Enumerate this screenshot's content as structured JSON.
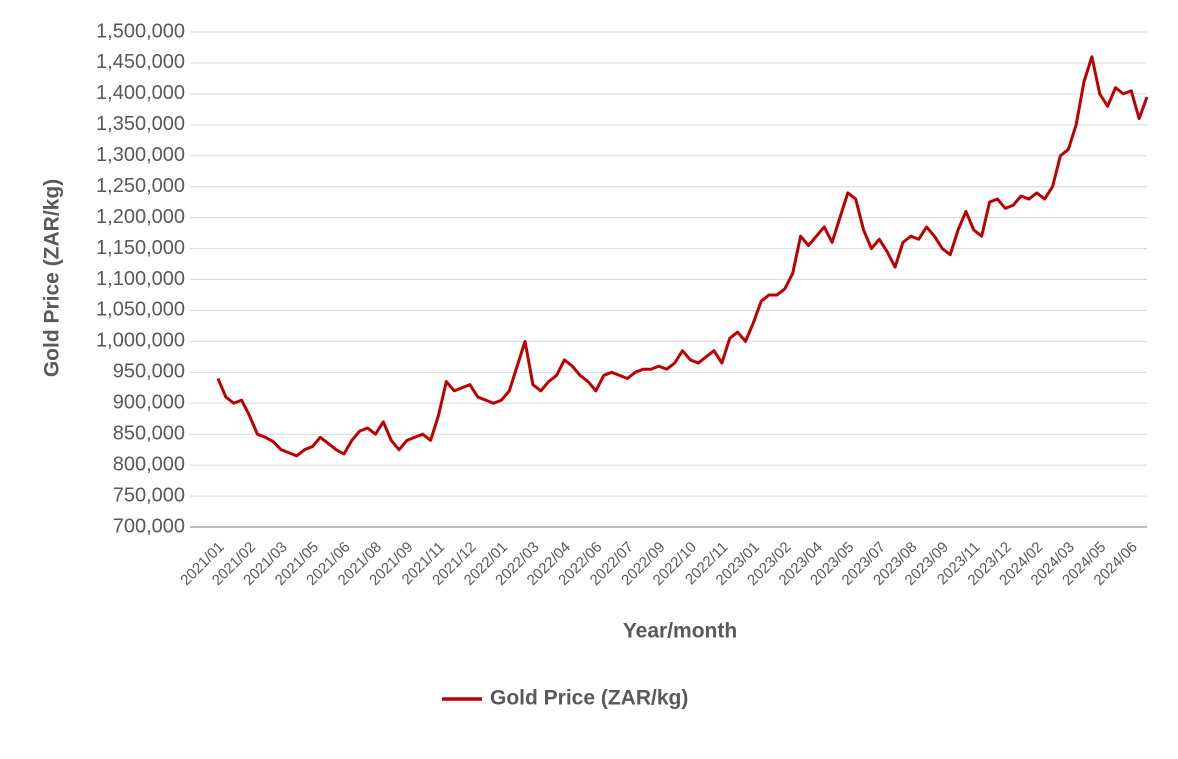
{
  "chart_data": {
    "type": "line",
    "x_label": "Year/month",
    "y_label": "Gold Price (ZAR/kg)",
    "categories": [
      "2021/01",
      null,
      null,
      null,
      "2021/02",
      null,
      null,
      null,
      "2021/03",
      null,
      null,
      null,
      "2021/05",
      null,
      null,
      null,
      "2021/06",
      null,
      null,
      null,
      "2021/08",
      null,
      null,
      null,
      "2021/09",
      null,
      null,
      null,
      "2021/11",
      null,
      null,
      null,
      "2021/12",
      null,
      null,
      null,
      "2022/01",
      null,
      null,
      null,
      "2022/03",
      null,
      null,
      null,
      "2022/04",
      null,
      null,
      null,
      "2022/06",
      null,
      null,
      null,
      "2022/07",
      null,
      null,
      null,
      "2022/09",
      null,
      null,
      null,
      "2022/10",
      null,
      null,
      null,
      "2022/11",
      null,
      null,
      null,
      "2023/01",
      null,
      null,
      null,
      "2023/02",
      null,
      null,
      null,
      "2023/04",
      null,
      null,
      null,
      "2023/05",
      null,
      null,
      null,
      "2023/07",
      null,
      null,
      null,
      "2023/08",
      null,
      null,
      null,
      "2023/09",
      null,
      null,
      null,
      "2023/11",
      null,
      null,
      null,
      "2023/12",
      null,
      null,
      null,
      "2024/02",
      null,
      null,
      null,
      "2024/03",
      null,
      null,
      null,
      "2024/05",
      null,
      null,
      null,
      "2024/06",
      null,
      null
    ],
    "series": [
      {
        "name": "Gold Price (ZAR/kg)",
        "color": "#c00000",
        "values": [
          940000,
          910000,
          900000,
          905000,
          880000,
          850000,
          845000,
          838000,
          825000,
          820000,
          815000,
          825000,
          830000,
          845000,
          835000,
          825000,
          818000,
          840000,
          855000,
          860000,
          850000,
          870000,
          840000,
          825000,
          840000,
          845000,
          850000,
          840000,
          880000,
          935000,
          920000,
          925000,
          930000,
          910000,
          905000,
          900000,
          905000,
          920000,
          960000,
          1000000,
          930000,
          920000,
          935000,
          945000,
          970000,
          960000,
          945000,
          935000,
          920000,
          945000,
          950000,
          945000,
          940000,
          950000,
          955000,
          955000,
          960000,
          955000,
          965000,
          985000,
          970000,
          965000,
          975000,
          985000,
          965000,
          1005000,
          1015000,
          1000000,
          1030000,
          1065000,
          1075000,
          1075000,
          1085000,
          1110000,
          1170000,
          1155000,
          1170000,
          1185000,
          1160000,
          1200000,
          1240000,
          1230000,
          1180000,
          1150000,
          1165000,
          1145000,
          1120000,
          1160000,
          1170000,
          1165000,
          1185000,
          1170000,
          1150000,
          1140000,
          1180000,
          1210000,
          1180000,
          1170000,
          1225000,
          1230000,
          1215000,
          1220000,
          1235000,
          1230000,
          1240000,
          1230000,
          1250000,
          1300000,
          1310000,
          1350000,
          1420000,
          1460000,
          1400000,
          1380000,
          1410000,
          1400000,
          1405000,
          1360000,
          1395000
        ]
      }
    ],
    "ylim": [
      700000,
      1500000
    ],
    "yticks": [
      {
        "value": 700000,
        "label": "700,000"
      },
      {
        "value": 750000,
        "label": "750,000"
      },
      {
        "value": 800000,
        "label": "800,000"
      },
      {
        "value": 850000,
        "label": "850,000"
      },
      {
        "value": 900000,
        "label": "900,000"
      },
      {
        "value": 950000,
        "label": "950,000"
      },
      {
        "value": 1000000,
        "label": "1,000,000"
      },
      {
        "value": 1050000,
        "label": "1,050,000"
      },
      {
        "value": 1100000,
        "label": "1,100,000"
      },
      {
        "value": 1150000,
        "label": "1,150,000"
      },
      {
        "value": 1200000,
        "label": "1,200,000"
      },
      {
        "value": 1250000,
        "label": "1,250,000"
      },
      {
        "value": 1300000,
        "label": "1,300,000"
      },
      {
        "value": 1350000,
        "label": "1,350,000"
      },
      {
        "value": 1400000,
        "label": "1,400,000"
      },
      {
        "value": 1450000,
        "label": "1,450,000"
      },
      {
        "value": 1500000,
        "label": "1,500,000"
      }
    ],
    "grid": true,
    "legend": "bottom"
  }
}
